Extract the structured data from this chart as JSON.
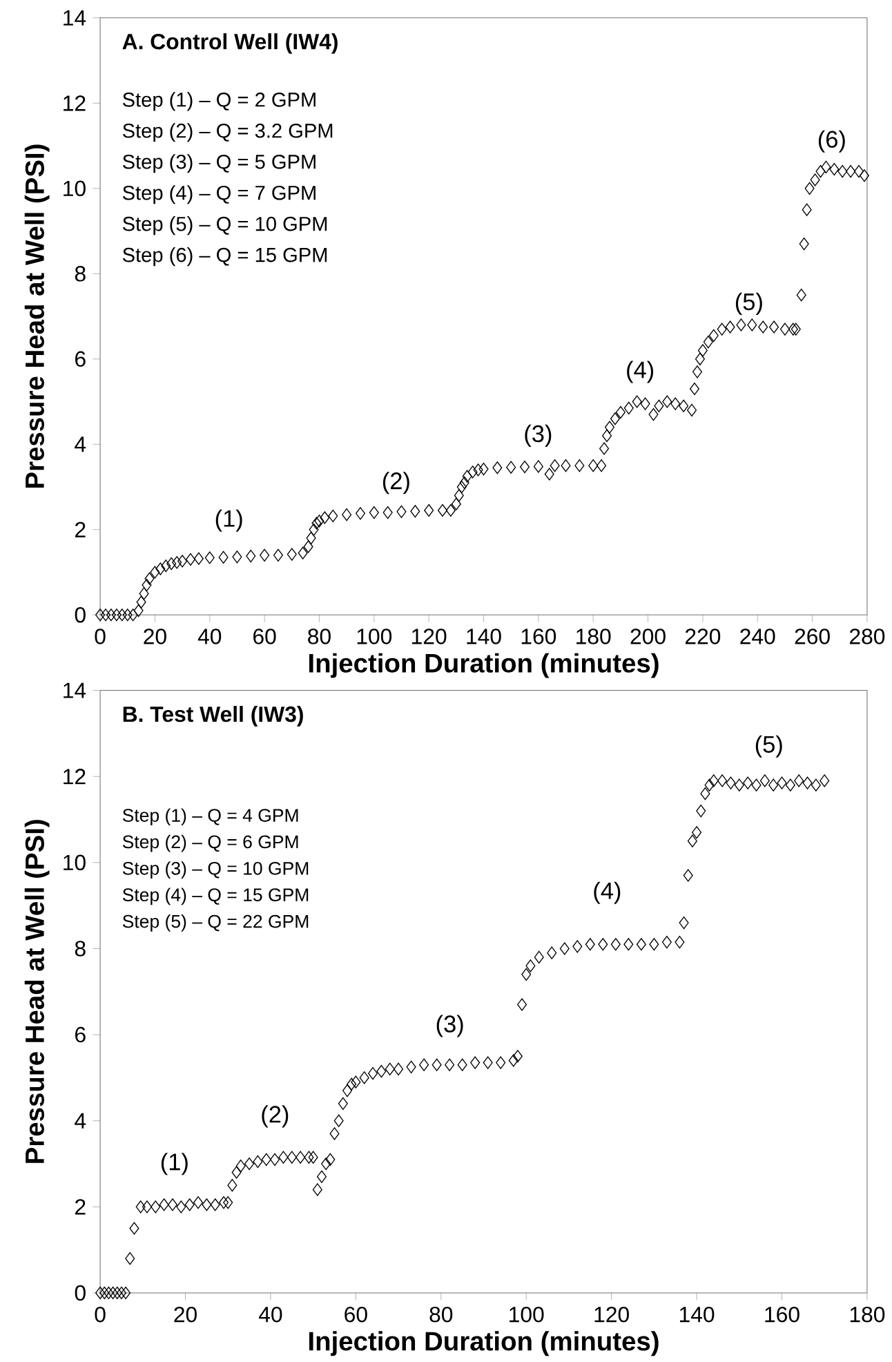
{
  "chart_data": [
    {
      "type": "scatter",
      "title": "A. Control Well (IW4)",
      "xlabel": "Injection Duration (minutes)",
      "ylabel": "Pressure Head at Well (PSI)",
      "marker": "diamond",
      "grid": false,
      "xlim": [
        0,
        280
      ],
      "ylim": [
        0,
        14
      ],
      "xticks": [
        0,
        20,
        40,
        60,
        80,
        100,
        120,
        140,
        160,
        180,
        200,
        220,
        240,
        260,
        280
      ],
      "yticks": [
        0,
        2,
        4,
        6,
        8,
        10,
        12,
        14
      ],
      "series": [
        {
          "color": "#000000",
          "x": [
            0,
            2,
            4,
            6,
            8,
            10,
            12,
            14,
            15,
            16,
            17,
            18,
            20,
            22,
            24,
            26,
            28,
            30,
            33,
            36,
            40,
            45,
            50,
            55,
            60,
            65,
            70,
            74,
            76,
            77,
            78,
            79,
            80,
            82,
            85,
            90,
            95,
            100,
            105,
            110,
            115,
            120,
            125,
            128,
            130,
            131,
            132,
            133,
            134,
            136,
            138,
            140,
            145,
            150,
            155,
            160,
            164,
            166,
            170,
            175,
            180,
            183,
            184,
            185,
            186,
            188,
            190,
            193,
            196,
            199,
            202,
            204,
            207,
            210,
            213,
            216,
            217,
            218,
            219,
            220,
            222,
            224,
            227,
            230,
            234,
            238,
            242,
            246,
            250,
            253,
            254,
            256,
            257,
            258,
            259,
            261,
            263,
            265,
            268,
            271,
            274,
            277,
            279
          ],
          "values": [
            0,
            0,
            0,
            0,
            0,
            0,
            0,
            0.1,
            0.3,
            0.5,
            0.7,
            0.85,
            1.0,
            1.08,
            1.15,
            1.2,
            1.23,
            1.26,
            1.3,
            1.32,
            1.34,
            1.35,
            1.36,
            1.38,
            1.4,
            1.4,
            1.42,
            1.45,
            1.6,
            1.8,
            2.0,
            2.15,
            2.2,
            2.28,
            2.32,
            2.35,
            2.38,
            2.4,
            2.4,
            2.42,
            2.43,
            2.45,
            2.45,
            2.45,
            2.6,
            2.8,
            3.0,
            3.1,
            3.25,
            3.35,
            3.4,
            3.42,
            3.45,
            3.46,
            3.47,
            3.48,
            3.3,
            3.5,
            3.5,
            3.5,
            3.5,
            3.5,
            3.9,
            4.2,
            4.4,
            4.6,
            4.75,
            4.85,
            5.0,
            4.95,
            4.7,
            4.9,
            5.0,
            4.95,
            4.9,
            4.8,
            5.3,
            5.7,
            6.0,
            6.2,
            6.4,
            6.55,
            6.7,
            6.75,
            6.8,
            6.8,
            6.75,
            6.75,
            6.7,
            6.7,
            6.7,
            7.5,
            8.7,
            9.5,
            10.0,
            10.2,
            10.4,
            10.5,
            10.45,
            10.4,
            10.4,
            10.4,
            10.3
          ]
        }
      ],
      "annotations": [
        "Step (1) – Q = 2 GPM",
        "Step (2) – Q = 3.2 GPM",
        "Step (3) – Q = 5 GPM",
        "Step (4) – Q = 7 GPM",
        "Step (5) – Q = 10 GPM",
        "Step (6) – Q = 15 GPM",
        "(1)",
        "(2)",
        "(3)",
        "(4)",
        "(5)",
        "(6)"
      ]
    },
    {
      "type": "scatter",
      "title": "B. Test Well (IW3)",
      "xlabel": "Injection Duration (minutes)",
      "ylabel": "Pressure Head at Well (PSI)",
      "marker": "diamond",
      "grid": false,
      "xlim": [
        0,
        180
      ],
      "ylim": [
        0,
        14
      ],
      "xticks": [
        0,
        20,
        40,
        60,
        80,
        100,
        120,
        140,
        160,
        180
      ],
      "yticks": [
        0,
        2,
        4,
        6,
        8,
        10,
        12,
        14
      ],
      "series": [
        {
          "color": "#000000",
          "x": [
            0,
            1,
            2,
            3,
            4,
            5,
            6,
            7,
            8,
            9.5,
            11,
            13,
            15,
            17,
            19,
            21,
            23,
            25,
            27,
            29,
            30,
            31,
            32,
            33,
            35,
            37,
            39,
            41,
            43,
            45,
            47,
            49,
            50,
            51,
            52,
            53,
            54,
            55,
            56,
            57,
            58,
            59,
            60,
            62,
            64,
            66,
            68,
            70,
            73,
            76,
            79,
            82,
            85,
            88,
            91,
            94,
            97,
            98,
            99,
            100,
            101,
            103,
            106,
            109,
            112,
            115,
            118,
            121,
            124,
            127,
            130,
            133,
            136,
            137,
            138,
            139,
            140,
            141,
            142,
            143,
            144,
            146,
            148,
            150,
            152,
            154,
            156,
            158,
            160,
            162,
            164,
            166,
            168,
            170
          ],
          "values": [
            0,
            0,
            0,
            0,
            0,
            0,
            0,
            0.8,
            1.5,
            2.0,
            2.0,
            2.0,
            2.05,
            2.05,
            2.0,
            2.05,
            2.1,
            2.05,
            2.05,
            2.1,
            2.1,
            2.5,
            2.8,
            2.95,
            3.0,
            3.05,
            3.1,
            3.1,
            3.15,
            3.15,
            3.15,
            3.15,
            3.15,
            2.4,
            2.7,
            3.0,
            3.1,
            3.7,
            4.0,
            4.4,
            4.7,
            4.85,
            4.9,
            5.0,
            5.1,
            5.15,
            5.2,
            5.2,
            5.25,
            5.3,
            5.3,
            5.3,
            5.3,
            5.35,
            5.35,
            5.35,
            5.4,
            5.5,
            6.7,
            7.4,
            7.6,
            7.8,
            7.9,
            8.0,
            8.05,
            8.1,
            8.1,
            8.1,
            8.1,
            8.1,
            8.1,
            8.15,
            8.15,
            8.6,
            9.7,
            10.5,
            10.7,
            11.2,
            11.6,
            11.8,
            11.9,
            11.9,
            11.85,
            11.8,
            11.85,
            11.8,
            11.9,
            11.8,
            11.85,
            11.8,
            11.9,
            11.85,
            11.8,
            11.9
          ]
        }
      ],
      "annotations": [
        "Step (1) – Q = 4 GPM",
        "Step (2) – Q = 6 GPM",
        "Step (3) – Q = 10 GPM",
        "Step (4) – Q = 15 GPM",
        "Step (5) – Q = 22 GPM",
        "(1)",
        "(2)",
        "(3)",
        "(4)",
        "(5)"
      ]
    }
  ]
}
